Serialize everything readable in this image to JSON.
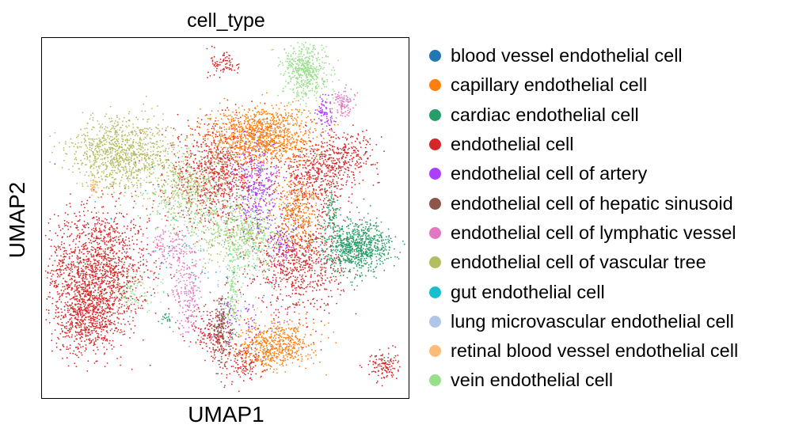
{
  "chart_data": {
    "type": "scatter",
    "title": "cell_type",
    "xlabel": "UMAP1",
    "ylabel": "UMAP2",
    "grid": false,
    "legend_position": "right",
    "categories": [
      {
        "name": "blood vessel endothelial cell",
        "color": "#1f77b4"
      },
      {
        "name": "capillary endothelial cell",
        "color": "#ff7f0e"
      },
      {
        "name": "cardiac endothelial cell",
        "color": "#279e68"
      },
      {
        "name": "endothelial cell",
        "color": "#d62728"
      },
      {
        "name": "endothelial cell of artery",
        "color": "#aa40fc"
      },
      {
        "name": "endothelial cell of hepatic sinusoid",
        "color": "#8c564b"
      },
      {
        "name": "endothelial cell of lymphatic vessel",
        "color": "#e377c2"
      },
      {
        "name": "endothelial cell of vascular tree",
        "color": "#b5bd61"
      },
      {
        "name": "gut endothelial cell",
        "color": "#17becf"
      },
      {
        "name": "lung microvascular endothelial cell",
        "color": "#aec7e8"
      },
      {
        "name": "retinal blood vessel endothelial cell",
        "color": "#ffbb78"
      },
      {
        "name": "vein endothelial cell",
        "color": "#98df8a"
      }
    ],
    "clusters": [
      {
        "category": "endothelial cell",
        "cx": 0.15,
        "cy": 0.35,
        "sx": 0.07,
        "sy": 0.09,
        "n": 1600
      },
      {
        "category": "endothelial cell",
        "cx": 0.12,
        "cy": 0.22,
        "sx": 0.04,
        "sy": 0.05,
        "n": 500
      },
      {
        "category": "endothelial cell",
        "cx": 0.48,
        "cy": 0.62,
        "sx": 0.07,
        "sy": 0.07,
        "n": 900
      },
      {
        "category": "endothelial cell",
        "cx": 0.7,
        "cy": 0.38,
        "sx": 0.06,
        "sy": 0.07,
        "n": 800
      },
      {
        "category": "endothelial cell",
        "cx": 0.75,
        "cy": 0.62,
        "sx": 0.05,
        "sy": 0.05,
        "n": 500
      },
      {
        "category": "endothelial cell",
        "cx": 0.84,
        "cy": 0.68,
        "sx": 0.04,
        "sy": 0.03,
        "n": 200
      },
      {
        "category": "endothelial cell",
        "cx": 0.55,
        "cy": 0.1,
        "sx": 0.03,
        "sy": 0.03,
        "n": 150
      },
      {
        "category": "endothelial cell",
        "cx": 0.93,
        "cy": 0.09,
        "sx": 0.02,
        "sy": 0.02,
        "n": 120
      },
      {
        "category": "endothelial cell",
        "cx": 0.5,
        "cy": 0.93,
        "sx": 0.02,
        "sy": 0.02,
        "n": 80
      },
      {
        "category": "endothelial cell",
        "cx": 0.47,
        "cy": 0.18,
        "sx": 0.03,
        "sy": 0.04,
        "n": 200
      },
      {
        "category": "capillary endothelial cell",
        "cx": 0.6,
        "cy": 0.73,
        "sx": 0.07,
        "sy": 0.04,
        "n": 1100
      },
      {
        "category": "capillary endothelial cell",
        "cx": 0.7,
        "cy": 0.52,
        "sx": 0.03,
        "sy": 0.05,
        "n": 300
      },
      {
        "category": "capillary endothelial cell",
        "cx": 0.64,
        "cy": 0.15,
        "sx": 0.05,
        "sy": 0.03,
        "n": 500
      },
      {
        "category": "capillary endothelial cell",
        "cx": 0.62,
        "cy": 0.11,
        "sx": 0.02,
        "sy": 0.02,
        "n": 60
      },
      {
        "category": "endothelial cell of vascular tree",
        "cx": 0.22,
        "cy": 0.68,
        "sx": 0.07,
        "sy": 0.05,
        "n": 1000
      },
      {
        "category": "endothelial cell of vascular tree",
        "cx": 0.4,
        "cy": 0.58,
        "sx": 0.06,
        "sy": 0.05,
        "n": 300
      },
      {
        "category": "endothelial cell of vascular tree",
        "cx": 0.55,
        "cy": 0.45,
        "sx": 0.06,
        "sy": 0.05,
        "n": 200
      },
      {
        "category": "cardiac endothelial cell",
        "cx": 0.86,
        "cy": 0.42,
        "sx": 0.045,
        "sy": 0.035,
        "n": 800
      },
      {
        "category": "cardiac endothelial cell",
        "cx": 0.79,
        "cy": 0.52,
        "sx": 0.01,
        "sy": 0.04,
        "n": 80
      },
      {
        "category": "cardiac endothelial cell",
        "cx": 0.34,
        "cy": 0.22,
        "sx": 0.01,
        "sy": 0.01,
        "n": 20
      },
      {
        "category": "vein endothelial cell",
        "cx": 0.72,
        "cy": 0.91,
        "sx": 0.03,
        "sy": 0.04,
        "n": 500
      },
      {
        "category": "vein endothelial cell",
        "cx": 0.56,
        "cy": 0.45,
        "sx": 0.05,
        "sy": 0.05,
        "n": 400
      },
      {
        "category": "vein endothelial cell",
        "cx": 0.52,
        "cy": 0.28,
        "sx": 0.01,
        "sy": 0.06,
        "n": 150
      },
      {
        "category": "vein endothelial cell",
        "cx": 0.4,
        "cy": 0.55,
        "sx": 0.06,
        "sy": 0.07,
        "n": 250
      },
      {
        "category": "vein endothelial cell",
        "cx": 0.25,
        "cy": 0.3,
        "sx": 0.04,
        "sy": 0.03,
        "n": 80
      },
      {
        "category": "endothelial cell of artery",
        "cx": 0.59,
        "cy": 0.58,
        "sx": 0.03,
        "sy": 0.06,
        "n": 300
      },
      {
        "category": "endothelial cell of artery",
        "cx": 0.77,
        "cy": 0.79,
        "sx": 0.012,
        "sy": 0.025,
        "n": 80
      },
      {
        "category": "endothelial cell of artery",
        "cx": 0.65,
        "cy": 0.42,
        "sx": 0.02,
        "sy": 0.03,
        "n": 60
      },
      {
        "category": "endothelial cell of artery",
        "cx": 0.55,
        "cy": 0.22,
        "sx": 0.05,
        "sy": 0.04,
        "n": 80
      },
      {
        "category": "endothelial cell of lymphatic vessel",
        "cx": 0.82,
        "cy": 0.82,
        "sx": 0.015,
        "sy": 0.02,
        "n": 100
      },
      {
        "category": "endothelial cell of lymphatic vessel",
        "cx": 0.4,
        "cy": 0.3,
        "sx": 0.02,
        "sy": 0.06,
        "n": 200
      },
      {
        "category": "endothelial cell of lymphatic vessel",
        "cx": 0.35,
        "cy": 0.42,
        "sx": 0.03,
        "sy": 0.03,
        "n": 120
      },
      {
        "category": "endothelial cell of hepatic sinusoid",
        "cx": 0.49,
        "cy": 0.19,
        "sx": 0.012,
        "sy": 0.05,
        "n": 150
      },
      {
        "category": "gut endothelial cell",
        "cx": 0.45,
        "cy": 0.42,
        "sx": 0.12,
        "sy": 0.12,
        "n": 60
      },
      {
        "category": "lung microvascular endothelial cell",
        "cx": 0.42,
        "cy": 0.35,
        "sx": 0.12,
        "sy": 0.12,
        "n": 80
      },
      {
        "category": "blood vessel endothelial cell",
        "cx": 0.45,
        "cy": 0.4,
        "sx": 0.12,
        "sy": 0.12,
        "n": 20
      },
      {
        "category": "retinal blood vessel endothelial cell",
        "cx": 0.14,
        "cy": 0.59,
        "sx": 0.006,
        "sy": 0.012,
        "n": 30
      },
      {
        "category": "retinal blood vessel endothelial cell",
        "cx": 0.4,
        "cy": 0.4,
        "sx": 0.1,
        "sy": 0.1,
        "n": 20
      }
    ]
  }
}
